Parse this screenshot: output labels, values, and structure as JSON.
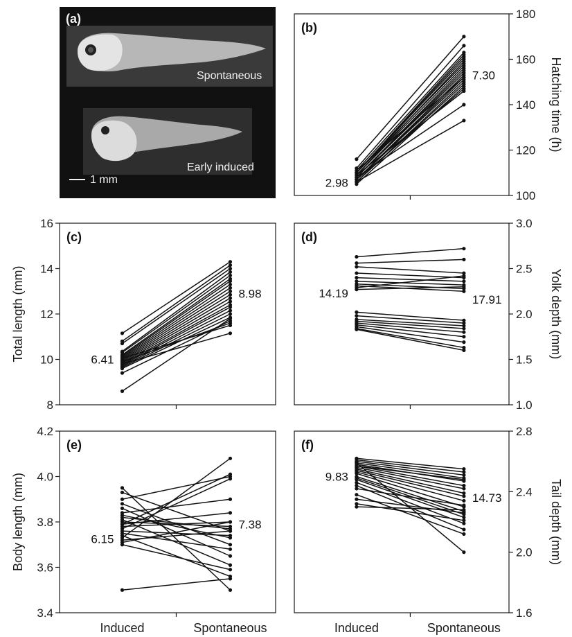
{
  "photo": {
    "letter": "(a)",
    "caption_top": "Spontaneous",
    "caption_bottom": "Early induced",
    "scale_label": "1 mm"
  },
  "x_categories": [
    "Induced",
    "Spontaneous"
  ],
  "chart_data": [
    {
      "id": "b",
      "letter": "(b)",
      "type": "line",
      "axis_side": "right",
      "ylabel": "Hatching time (h)",
      "ylim": [
        100,
        180
      ],
      "yticks": [
        100,
        120,
        140,
        160,
        180
      ],
      "label_left": "2.98",
      "label_right": "7.30",
      "pairs": [
        [
          116,
          170
        ],
        [
          112,
          166
        ],
        [
          111,
          163
        ],
        [
          110,
          162
        ],
        [
          110,
          161
        ],
        [
          110,
          160
        ],
        [
          109,
          159
        ],
        [
          109,
          157
        ],
        [
          108,
          156
        ],
        [
          108,
          155
        ],
        [
          108,
          154
        ],
        [
          107,
          153
        ],
        [
          107,
          152
        ],
        [
          107,
          151
        ],
        [
          106,
          150
        ],
        [
          106,
          149
        ],
        [
          105,
          148
        ],
        [
          109,
          146
        ],
        [
          108,
          140
        ],
        [
          106,
          133
        ],
        [
          110,
          158
        ],
        [
          111,
          152
        ],
        [
          107,
          147
        ]
      ]
    },
    {
      "id": "c",
      "letter": "(c)",
      "type": "line",
      "axis_side": "left",
      "ylabel": "Total length (mm)",
      "ylim": [
        8,
        16
      ],
      "yticks": [
        8,
        10,
        12,
        14,
        16
      ],
      "label_left": "6.41",
      "label_right": "8.98",
      "pairs": [
        [
          11.15,
          14.3
        ],
        [
          10.8,
          14.15
        ],
        [
          10.7,
          14.0
        ],
        [
          10.35,
          13.85
        ],
        [
          10.3,
          13.7
        ],
        [
          10.2,
          13.55
        ],
        [
          10.15,
          13.45
        ],
        [
          10.1,
          13.3
        ],
        [
          10.05,
          13.15
        ],
        [
          10.0,
          13.0
        ],
        [
          9.95,
          12.85
        ],
        [
          9.9,
          12.7
        ],
        [
          9.85,
          12.55
        ],
        [
          9.8,
          12.4
        ],
        [
          9.75,
          12.3
        ],
        [
          9.7,
          12.15
        ],
        [
          9.65,
          12.0
        ],
        [
          9.6,
          11.85
        ],
        [
          9.4,
          11.7
        ],
        [
          9.9,
          11.6
        ],
        [
          10.05,
          11.5
        ],
        [
          9.8,
          11.15
        ],
        [
          8.6,
          11.8
        ]
      ]
    },
    {
      "id": "d",
      "letter": "(d)",
      "type": "line",
      "axis_side": "right",
      "ylabel": "Yolk depth (mm)",
      "ylim": [
        1.0,
        3.0
      ],
      "yticks": [
        1.0,
        1.5,
        2.0,
        2.5,
        3.0
      ],
      "label_left": "14.19",
      "label_right": "17.91",
      "pairs": [
        [
          2.63,
          2.72
        ],
        [
          2.56,
          2.6
        ],
        [
          2.52,
          2.45
        ],
        [
          2.45,
          2.4
        ],
        [
          2.4,
          2.36
        ],
        [
          2.36,
          2.32
        ],
        [
          2.33,
          2.28
        ],
        [
          2.31,
          2.25
        ],
        [
          2.29,
          2.42
        ],
        [
          2.27,
          2.3
        ],
        [
          2.02,
          1.93
        ],
        [
          1.98,
          1.9
        ],
        [
          1.94,
          1.87
        ],
        [
          1.92,
          1.84
        ],
        [
          1.9,
          1.8
        ],
        [
          1.88,
          1.75
        ],
        [
          1.86,
          1.69
        ],
        [
          1.84,
          1.63
        ],
        [
          1.83,
          1.6
        ]
      ]
    },
    {
      "id": "e",
      "letter": "(e)",
      "type": "line",
      "axis_side": "left",
      "ylabel": "Body length (mm)",
      "ylim": [
        3.4,
        4.2
      ],
      "yticks": [
        3.4,
        3.6,
        3.8,
        4.0,
        4.2
      ],
      "label_left": "6.15",
      "label_right": "7.38",
      "pairs": [
        [
          3.95,
          3.5
        ],
        [
          3.93,
          3.76
        ],
        [
          3.9,
          4.0
        ],
        [
          3.88,
          3.7
        ],
        [
          3.86,
          3.65
        ],
        [
          3.84,
          3.9
        ],
        [
          3.82,
          3.77
        ],
        [
          3.81,
          3.61
        ],
        [
          3.8,
          3.78
        ],
        [
          3.79,
          3.84
        ],
        [
          3.78,
          3.8
        ],
        [
          3.77,
          3.99
        ],
        [
          3.76,
          3.74
        ],
        [
          3.75,
          3.68
        ],
        [
          3.74,
          3.56
        ],
        [
          3.73,
          4.08
        ],
        [
          3.72,
          3.76
        ],
        [
          3.71,
          3.8
        ],
        [
          3.7,
          3.59
        ],
        [
          3.83,
          3.73
        ],
        [
          3.79,
          4.01
        ],
        [
          3.5,
          3.55
        ]
      ]
    },
    {
      "id": "f",
      "letter": "(f)",
      "type": "line",
      "axis_side": "right",
      "ylabel": "Tail depth (mm)",
      "ylim": [
        1.6,
        2.8
      ],
      "yticks": [
        1.6,
        2.0,
        2.4,
        2.8
      ],
      "label_left": "9.83",
      "label_right": "14.73",
      "pairs": [
        [
          2.62,
          2.55
        ],
        [
          2.61,
          2.53
        ],
        [
          2.6,
          2.51
        ],
        [
          2.59,
          2.49
        ],
        [
          2.58,
          2.47
        ],
        [
          2.57,
          2.44
        ],
        [
          2.56,
          2.42
        ],
        [
          2.55,
          2.39
        ],
        [
          2.54,
          2.37
        ],
        [
          2.53,
          2.34
        ],
        [
          2.52,
          2.3
        ],
        [
          2.5,
          2.27
        ],
        [
          2.49,
          2.25
        ],
        [
          2.48,
          2.23
        ],
        [
          2.46,
          2.19
        ],
        [
          2.44,
          2.15
        ],
        [
          2.42,
          2.31
        ],
        [
          2.38,
          2.12
        ],
        [
          2.35,
          2.26
        ],
        [
          2.32,
          2.21
        ],
        [
          2.3,
          2.28
        ],
        [
          2.59,
          2.0
        ],
        [
          2.57,
          2.48
        ]
      ]
    }
  ]
}
